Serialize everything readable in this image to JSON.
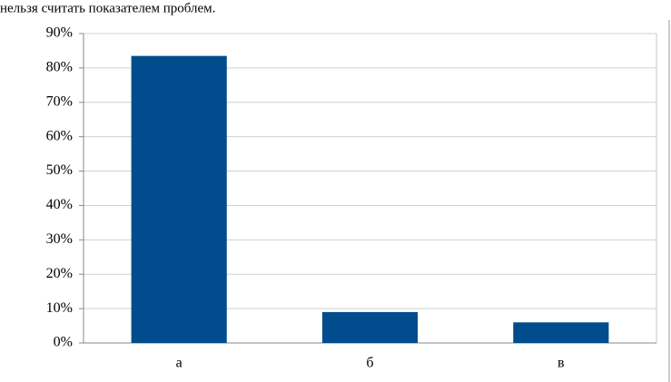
{
  "text": "нельзя считать показателем проблем.",
  "chart_data": {
    "type": "bar",
    "categories": [
      "а",
      "б",
      "в"
    ],
    "values": [
      83.5,
      9,
      6
    ],
    "color": "#004c8c",
    "ylim": [
      0,
      90
    ],
    "yticks": [
      {
        "value": 0,
        "label": "0%"
      },
      {
        "value": 10,
        "label": "10%"
      },
      {
        "value": 20,
        "label": "20%"
      },
      {
        "value": 30,
        "label": "30%"
      },
      {
        "value": 40,
        "label": "40%"
      },
      {
        "value": 50,
        "label": "50%"
      },
      {
        "value": 60,
        "label": "60%"
      },
      {
        "value": 70,
        "label": "70%"
      },
      {
        "value": 80,
        "label": "80%"
      },
      {
        "value": 90,
        "label": "90%"
      }
    ],
    "grid": true
  }
}
